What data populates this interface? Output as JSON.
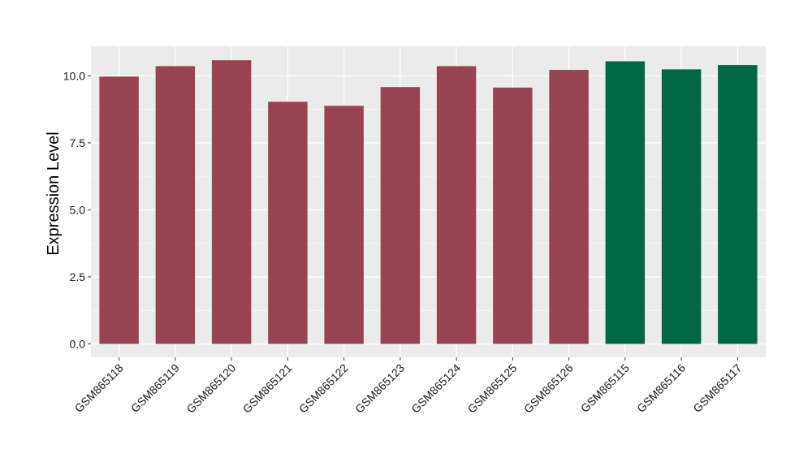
{
  "chart_data": {
    "type": "bar",
    "title": "",
    "xlabel": "",
    "ylabel": "Expression Level",
    "ylim": [
      -0.5,
      11.1
    ],
    "yticks": [
      0.0,
      2.5,
      5.0,
      7.5,
      10.0
    ],
    "ytick_labels": [
      "0.0",
      "2.5",
      "5.0",
      "7.5",
      "10.0"
    ],
    "grid": true,
    "legend": "none",
    "categories": [
      "GSM865118",
      "GSM865119",
      "GSM865120",
      "GSM865121",
      "GSM865122",
      "GSM865123",
      "GSM865124",
      "GSM865125",
      "GSM865126",
      "GSM865115",
      "GSM865116",
      "GSM865117"
    ],
    "values": [
      9.97,
      10.36,
      10.58,
      9.03,
      8.88,
      9.58,
      10.36,
      9.56,
      10.22,
      10.54,
      10.24,
      10.4
    ],
    "bar_colors": [
      "#984350",
      "#984350",
      "#984350",
      "#984350",
      "#984350",
      "#984350",
      "#984350",
      "#984350",
      "#984350",
      "#006644",
      "#006644",
      "#006644"
    ],
    "panel_background": "#ebebeb",
    "gridline_color": "#ffffff"
  }
}
